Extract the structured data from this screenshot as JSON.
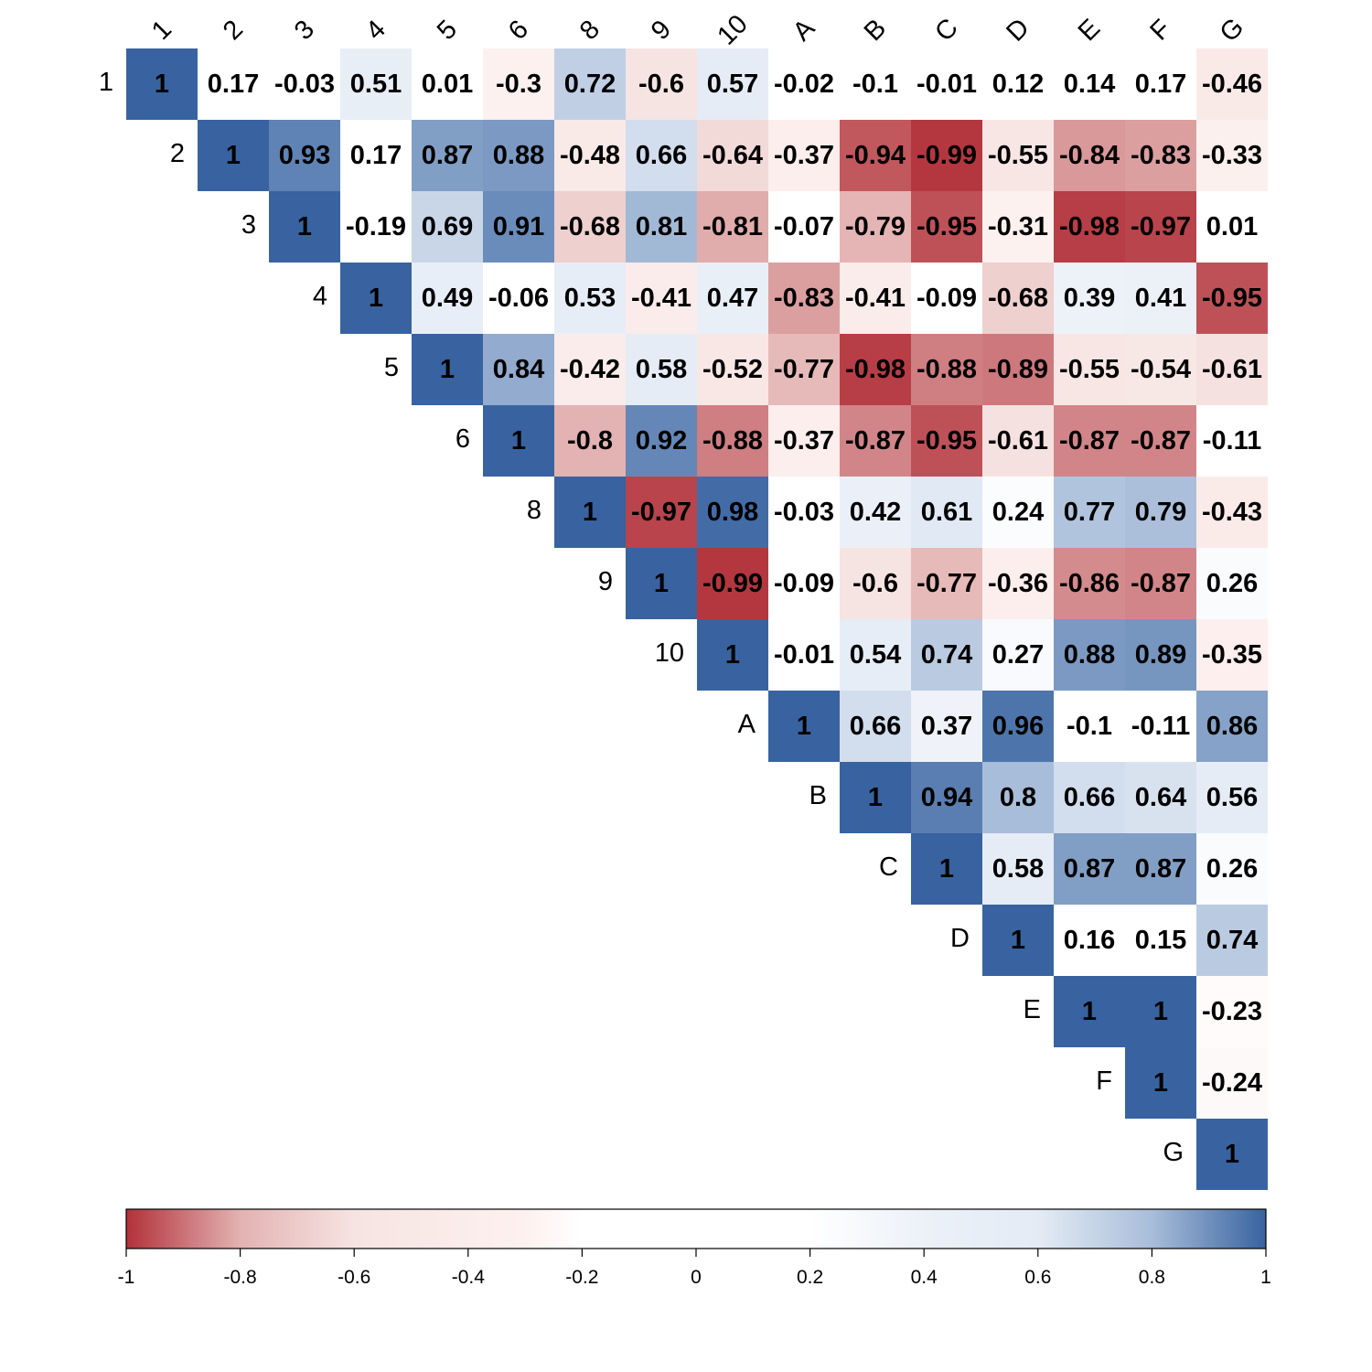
{
  "chart_data": {
    "type": "heatmap",
    "subtype": "correlation-matrix-upper-triangle",
    "labels": [
      "1",
      "2",
      "3",
      "4",
      "5",
      "6",
      "8",
      "9",
      "10",
      "A",
      "B",
      "C",
      "D",
      "E",
      "F",
      "G"
    ],
    "matrix": [
      [
        1,
        0.17,
        -0.03,
        0.51,
        0.01,
        -0.3,
        0.72,
        -0.6,
        0.57,
        -0.02,
        -0.1,
        -0.01,
        0.12,
        0.14,
        0.17,
        -0.46
      ],
      [
        null,
        1,
        0.93,
        0.17,
        0.87,
        0.88,
        -0.48,
        0.66,
        -0.64,
        -0.37,
        -0.94,
        -0.99,
        -0.55,
        -0.84,
        -0.83,
        -0.33
      ],
      [
        null,
        null,
        1,
        -0.19,
        0.69,
        0.91,
        -0.68,
        0.81,
        -0.81,
        -0.07,
        -0.79,
        -0.95,
        -0.31,
        -0.98,
        -0.97,
        0.01
      ],
      [
        null,
        null,
        null,
        1,
        0.49,
        -0.06,
        0.53,
        -0.41,
        0.47,
        -0.83,
        -0.41,
        -0.09,
        -0.68,
        0.39,
        0.41,
        -0.95
      ],
      [
        null,
        null,
        null,
        null,
        1,
        0.84,
        -0.42,
        0.58,
        -0.52,
        -0.77,
        -0.98,
        -0.88,
        -0.89,
        -0.55,
        -0.54,
        -0.61
      ],
      [
        null,
        null,
        null,
        null,
        null,
        1,
        -0.8,
        0.92,
        -0.88,
        -0.37,
        -0.87,
        -0.95,
        -0.61,
        -0.87,
        -0.87,
        -0.11
      ],
      [
        null,
        null,
        null,
        null,
        null,
        null,
        1,
        -0.97,
        0.98,
        -0.03,
        0.42,
        0.61,
        0.24,
        0.77,
        0.79,
        -0.43
      ],
      [
        null,
        null,
        null,
        null,
        null,
        null,
        null,
        1,
        -0.99,
        -0.09,
        -0.6,
        -0.77,
        -0.36,
        -0.86,
        -0.87,
        0.26
      ],
      [
        null,
        null,
        null,
        null,
        null,
        null,
        null,
        null,
        1,
        -0.01,
        0.54,
        0.74,
        0.27,
        0.88,
        0.89,
        -0.35
      ],
      [
        null,
        null,
        null,
        null,
        null,
        null,
        null,
        null,
        null,
        1,
        0.66,
        0.37,
        0.96,
        -0.1,
        -0.11,
        0.86
      ],
      [
        null,
        null,
        null,
        null,
        null,
        null,
        null,
        null,
        null,
        null,
        1,
        0.94,
        0.8,
        0.66,
        0.64,
        0.56
      ],
      [
        null,
        null,
        null,
        null,
        null,
        null,
        null,
        null,
        null,
        null,
        null,
        1,
        0.58,
        0.87,
        0.87,
        0.26
      ],
      [
        null,
        null,
        null,
        null,
        null,
        null,
        null,
        null,
        null,
        null,
        null,
        null,
        1,
        0.16,
        0.15,
        0.74
      ],
      [
        null,
        null,
        null,
        null,
        null,
        null,
        null,
        null,
        null,
        null,
        null,
        null,
        null,
        1,
        1,
        -0.23
      ],
      [
        null,
        null,
        null,
        null,
        null,
        null,
        null,
        null,
        null,
        null,
        null,
        null,
        null,
        null,
        1,
        -0.24
      ],
      [
        null,
        null,
        null,
        null,
        null,
        null,
        null,
        null,
        null,
        null,
        null,
        null,
        null,
        null,
        null,
        1
      ]
    ],
    "color_scale": {
      "range": [
        -1,
        1
      ],
      "ticks": [
        "-1",
        "-0.8",
        "-0.6",
        "-0.4",
        "-0.2",
        "0",
        "0.2",
        "0.4",
        "0.6",
        "0.8",
        "1"
      ],
      "stops": [
        {
          "value": -1,
          "color": "#B2313A"
        },
        {
          "value": -0.8,
          "color": "#E3B2B2"
        },
        {
          "value": -0.6,
          "color": "#F6E4E2"
        },
        {
          "value": -0.3,
          "color": "#FDF1EF"
        },
        {
          "value": -0.2,
          "color": "#FFFFFF"
        },
        {
          "value": 0.2,
          "color": "#FFFFFF"
        },
        {
          "value": 0.4,
          "color": "#ECF1F8"
        },
        {
          "value": 0.6,
          "color": "#E4EBF5"
        },
        {
          "value": 0.8,
          "color": "#A8BDD9"
        },
        {
          "value": 1,
          "color": "#3863A0"
        }
      ],
      "legend_placement": "bottom"
    },
    "grid": false
  }
}
